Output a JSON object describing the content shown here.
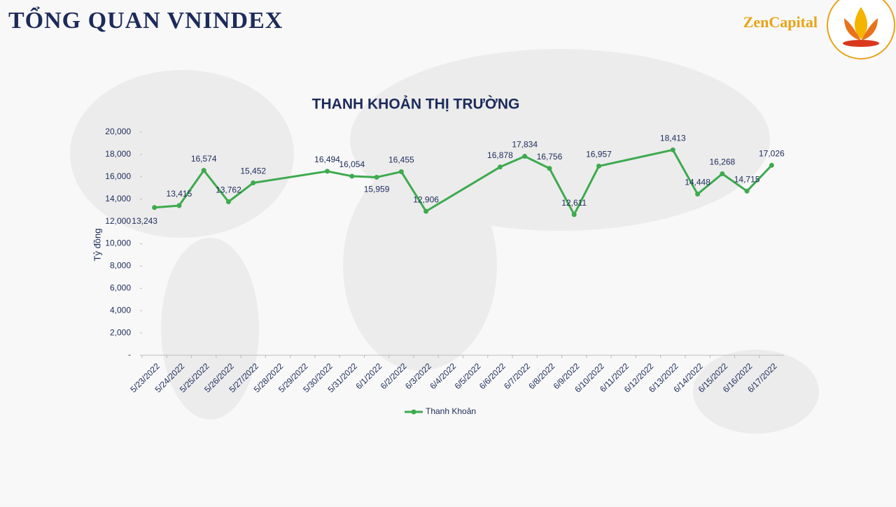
{
  "header": {
    "title": "TỔNG QUAN VNINDEX",
    "brand": "ZenCapital"
  },
  "chart_data": {
    "type": "line",
    "title": "THANH KHOẢN THỊ TRƯỜNG",
    "y_label": "Tỷ đồng",
    "categories": [
      "5/23/2022",
      "5/24/2022",
      "5/25/2022",
      "5/26/2022",
      "5/27/2022",
      "5/28/2022",
      "5/29/2022",
      "5/30/2022",
      "5/31/2022",
      "6/1/2022",
      "6/2/2022",
      "6/3/2022",
      "6/4/2022",
      "6/5/2022",
      "6/6/2022",
      "6/7/2022",
      "6/8/2022",
      "6/9/2022",
      "6/10/2022",
      "6/11/2022",
      "6/12/2022",
      "6/13/2022",
      "6/14/2022",
      "6/15/2022",
      "6/16/2022",
      "6/17/2022"
    ],
    "series": [
      {
        "name": "Thanh Khoản",
        "color": "#3daa4e",
        "values": [
          13243,
          13415,
          16574,
          13762,
          15452,
          null,
          null,
          16494,
          16054,
          15959,
          16455,
          12906,
          null,
          null,
          16878,
          17834,
          16756,
          12611,
          16957,
          null,
          null,
          18413,
          14448,
          16268,
          14715,
          17026
        ],
        "value_labels": [
          "13,243",
          "13,415",
          "16,574",
          "13,762",
          "15,452",
          null,
          null,
          "16,494",
          "16,054",
          "15,959",
          "16,455",
          "12,906",
          null,
          null,
          "16,878",
          "17,834",
          "16,756",
          "12,611",
          "16,957",
          null,
          null,
          "18,413",
          "14,448",
          "16,268",
          "14,715",
          "17,026"
        ]
      }
    ],
    "ylim": [
      0,
      20000
    ],
    "yticks": [
      {
        "value": 0,
        "label": "-"
      },
      {
        "value": 2000,
        "label": "2,000"
      },
      {
        "value": 4000,
        "label": "4,000"
      },
      {
        "value": 6000,
        "label": "6,000"
      },
      {
        "value": 8000,
        "label": "8,000"
      },
      {
        "value": 10000,
        "label": "10,000"
      },
      {
        "value": 12000,
        "label": "12,000"
      },
      {
        "value": 14000,
        "label": "14,000"
      },
      {
        "value": 16000,
        "label": "16,000"
      },
      {
        "value": 18000,
        "label": "18,000"
      },
      {
        "value": 20000,
        "label": "20,000"
      }
    ],
    "legend": "bottom"
  }
}
